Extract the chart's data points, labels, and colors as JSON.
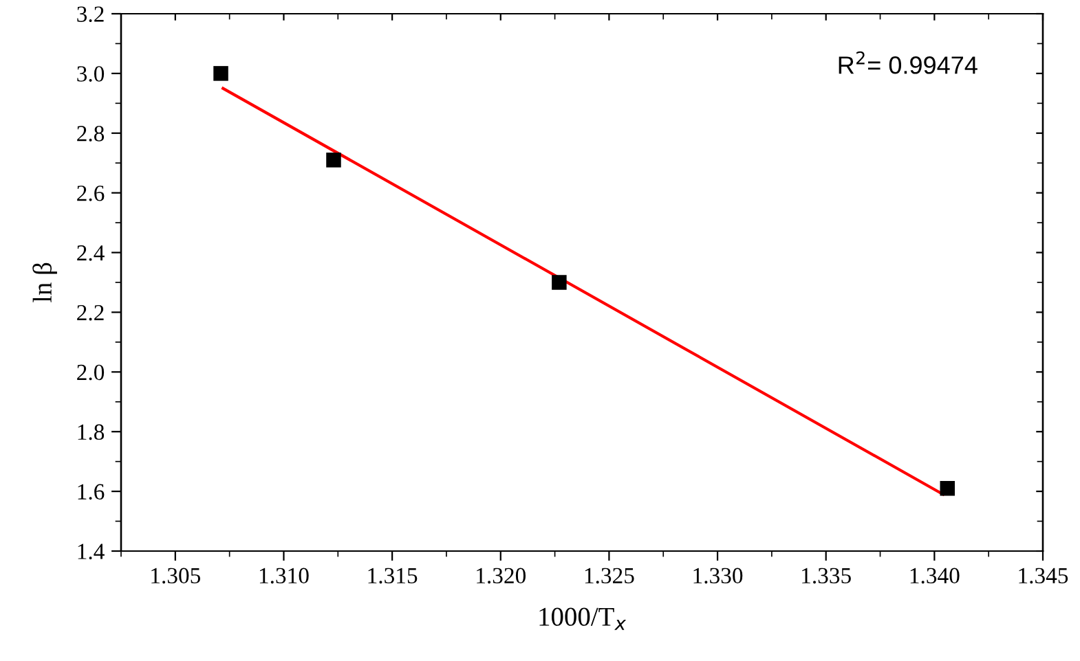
{
  "chart_data": {
    "type": "scatter",
    "xlabel": "1000/T$_{x}$",
    "ylabel": "ln β",
    "annotations": [
      "R$^{2}$= 0.99474"
    ],
    "series": [
      {
        "color": "#000000",
        "marker": "square",
        "x": [
          1.3071,
          1.3123,
          1.3227,
          1.3406
        ],
        "values": [
          3.0,
          2.71,
          2.3,
          1.61
        ]
      },
      {
        "type": "line",
        "color": "#ff0000",
        "marker": "none",
        "line_style": "solid",
        "x": [
          1.3072,
          1.3404
        ],
        "values": [
          2.95,
          1.59
        ]
      }
    ],
    "xlim": [
      1.3025,
      1.345
    ],
    "xticks": [
      1.305,
      {
        "value": 1.31,
        "label": "1.310"
      },
      1.315,
      {
        "value": 1.32,
        "label": "1.320"
      },
      1.325,
      {
        "value": 1.33,
        "label": "1.330"
      },
      1.335,
      {
        "value": 1.34,
        "label": "1.340"
      },
      1.345
    ],
    "ylim": [
      1.4,
      3.2
    ],
    "yticks": [
      1.4,
      1.6,
      1.8,
      {
        "value": 2,
        "label": "2.0"
      },
      2.2,
      2.4,
      2.6,
      2.8,
      {
        "value": 3,
        "label": "3.0"
      },
      3.2
    ],
    "grid": false
  }
}
